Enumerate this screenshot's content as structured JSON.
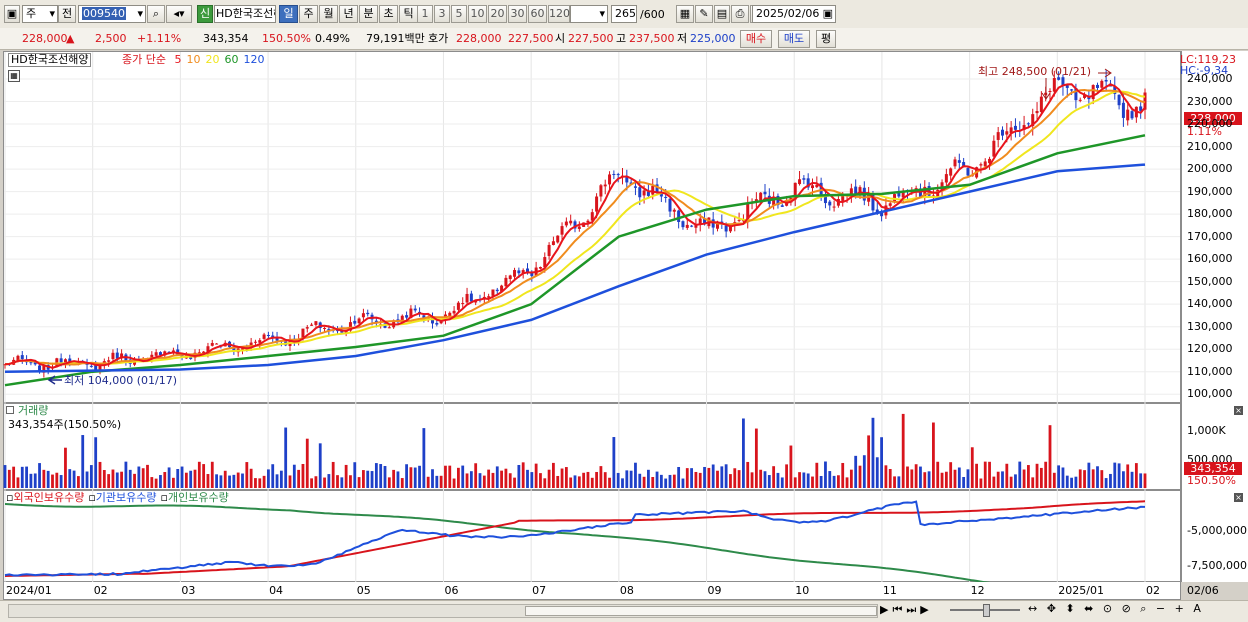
{
  "toolbar": {
    "market_sel": "주",
    "prev_label": "전",
    "code": "009540",
    "new_badge": "신",
    "stock_name": "HD한국조선해양",
    "periods": [
      "일",
      "주",
      "월",
      "년",
      "분",
      "초",
      "틱"
    ],
    "active_period": "일",
    "numbers": [
      "1",
      "3",
      "5",
      "10",
      "20",
      "30",
      "60",
      "120"
    ],
    "count_value": "265",
    "count_total": "/600",
    "date": "2025/02/06"
  },
  "quote": {
    "price": "228,000",
    "change": "2,500",
    "change_pct": "+1.11%",
    "volume": "343,354",
    "volume_pct": "150.50%",
    "turnover_pct": "0.49%",
    "amount": "79,191백만",
    "bid_label": "호가",
    "bid1": "228,000",
    "bid2": "227,500",
    "open_label": "시",
    "open": "227,500",
    "high_label": "고",
    "high": "237,500",
    "low_label": "저",
    "low": "225,000",
    "buy_label": "매수",
    "sell_label": "매도",
    "avg_label": "평"
  },
  "price_panel": {
    "title": "HD한국조선해양",
    "legend_prefix": "종가 단순",
    "ma": [
      {
        "label": "5",
        "color": "#e8141c"
      },
      {
        "label": "10",
        "color": "#f08c1e"
      },
      {
        "label": "20",
        "color": "#f0e61e"
      },
      {
        "label": "60",
        "color": "#1e9628"
      },
      {
        "label": "120",
        "color": "#1e50dc"
      }
    ],
    "lc": "LC:119,23",
    "hc": "HC:-9,34",
    "max_annotation": "최고 248,500 (01/21)",
    "min_annotation": "최저 104,000 (01/17)",
    "current_price_tag": "228,000",
    "current_pct_tag": "1.11%",
    "y_ticks": [
      "240,000",
      "230,000",
      "220,000",
      "210,000",
      "200,000",
      "190,000",
      "180,000",
      "170,000",
      "160,000",
      "150,000",
      "140,000",
      "130,000",
      "120,000",
      "110,000",
      "100,000"
    ]
  },
  "volume_panel": {
    "title": "거래량",
    "subtitle": "343,354주(150.50%)",
    "y_ticks": [
      "1,000K",
      "500,000"
    ],
    "current_tag": "343,354",
    "current_pct": "150.50%"
  },
  "holding_panel": {
    "legend": [
      {
        "label": "외국인보유수량",
        "color": "#d8141c"
      },
      {
        "label": "기관보유수량",
        "color": "#1e50dc"
      },
      {
        "label": "개인보유수량",
        "color": "#2e8a4a"
      }
    ],
    "y_ticks": [
      "-5,000,000",
      "-7,500,000"
    ]
  },
  "x_axis": {
    "labels": [
      "2024/01",
      "02",
      "03",
      "04",
      "05",
      "06",
      "07",
      "08",
      "09",
      "10",
      "11",
      "12",
      "2025/01",
      "02"
    ],
    "right_label": "02/06"
  },
  "colors": {
    "up": "#d8141c",
    "down": "#1e40c8",
    "ma5": "#e8141c",
    "ma10": "#f08c1e",
    "ma20": "#f0e61e",
    "ma60": "#1e9628",
    "ma120": "#1e50dc"
  },
  "chart_data": {
    "type": "line",
    "title": "HD한국조선해양",
    "ylim": [
      97000,
      252000
    ],
    "x": [
      "2024/01",
      "02",
      "03",
      "04",
      "05",
      "06",
      "07",
      "08",
      "09",
      "10",
      "11",
      "12",
      "2025/01",
      "02"
    ],
    "series": [
      {
        "name": "종가",
        "values": [
          113000,
          114000,
          118000,
          124000,
          132000,
          135000,
          155000,
          198000,
          172000,
          192000,
          185000,
          200000,
          236000,
          228000
        ]
      },
      {
        "name": "120",
        "values": [
          110000,
          110500,
          111000,
          113000,
          117000,
          124000,
          133000,
          148000,
          162000,
          172000,
          181000,
          190000,
          199000,
          202000
        ]
      },
      {
        "name": "60",
        "values": [
          104000,
          110000,
          113000,
          117000,
          121000,
          126000,
          140000,
          170000,
          182000,
          188000,
          189000,
          193000,
          207000,
          215000
        ]
      }
    ]
  }
}
